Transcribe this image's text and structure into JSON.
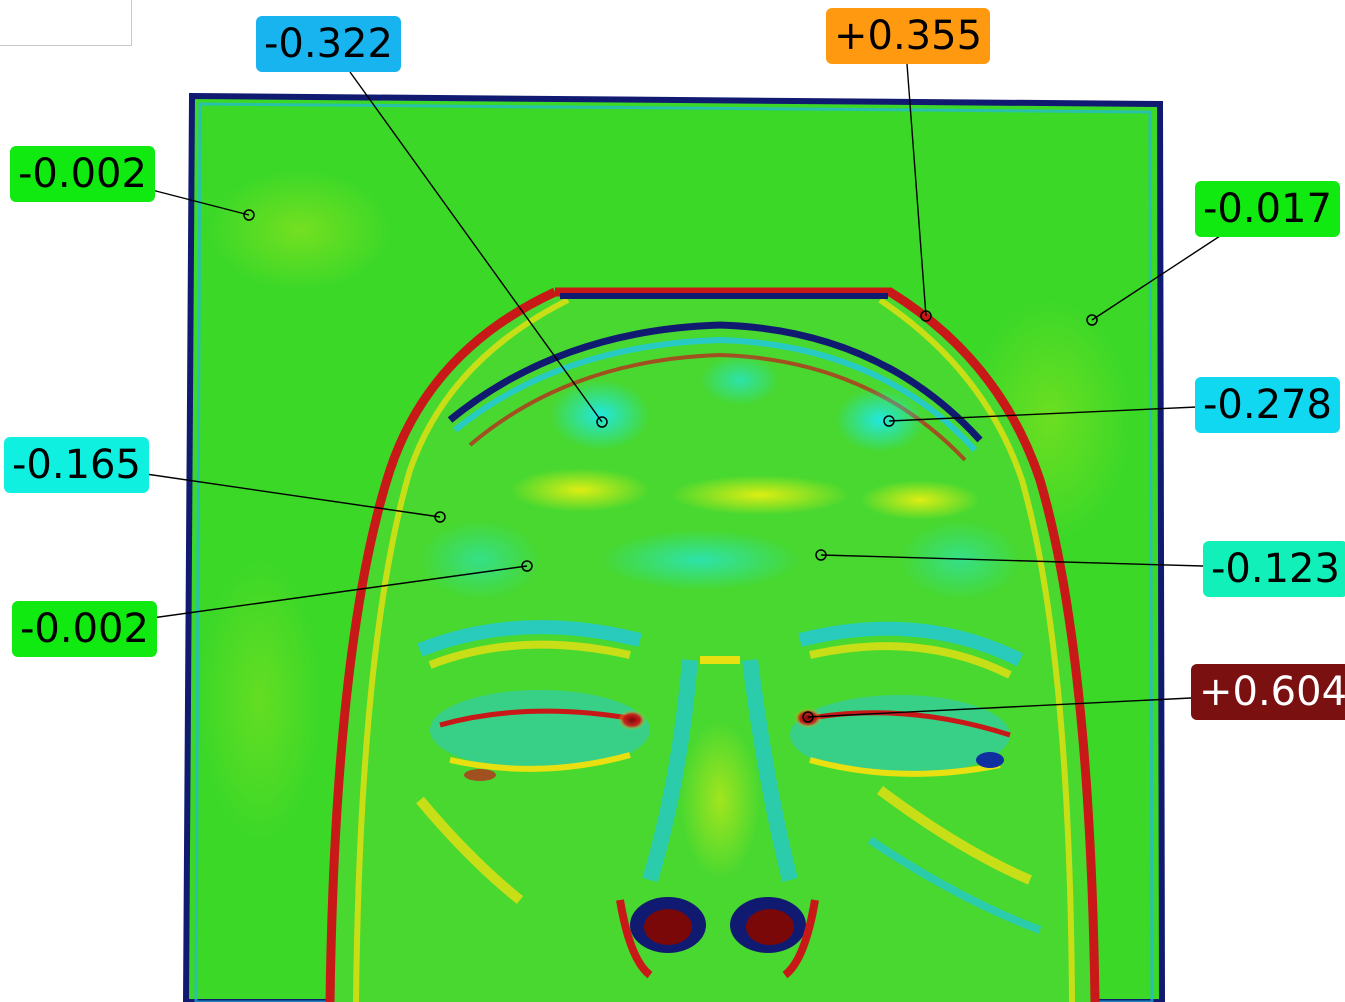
{
  "labels": [
    {
      "id": "l1",
      "text": "-0.322",
      "color": "#18b4f0"
    },
    {
      "id": "l2",
      "text": "+0.355",
      "color": "#ff9a10"
    },
    {
      "id": "l3",
      "text": "-0.002",
      "color": "#10ea10"
    },
    {
      "id": "l4",
      "text": "-0.017",
      "color": "#10ea10"
    },
    {
      "id": "l5",
      "text": "-0.278",
      "color": "#10d8f0"
    },
    {
      "id": "l6",
      "text": "-0.165",
      "color": "#10f0e0"
    },
    {
      "id": "l7",
      "text": "-0.123",
      "color": "#10f0b8"
    },
    {
      "id": "l8",
      "text": "-0.002",
      "color": "#10ea10"
    },
    {
      "id": "l9",
      "text": "+0.604",
      "color": "#7a1010"
    }
  ],
  "colors": {
    "background": "#ffffff",
    "mesh_green": "#30d820",
    "deviation_red": "#c81818",
    "deviation_blue": "#101880",
    "deviation_yellow": "#e8e010",
    "deviation_cyan": "#20e0d0"
  }
}
